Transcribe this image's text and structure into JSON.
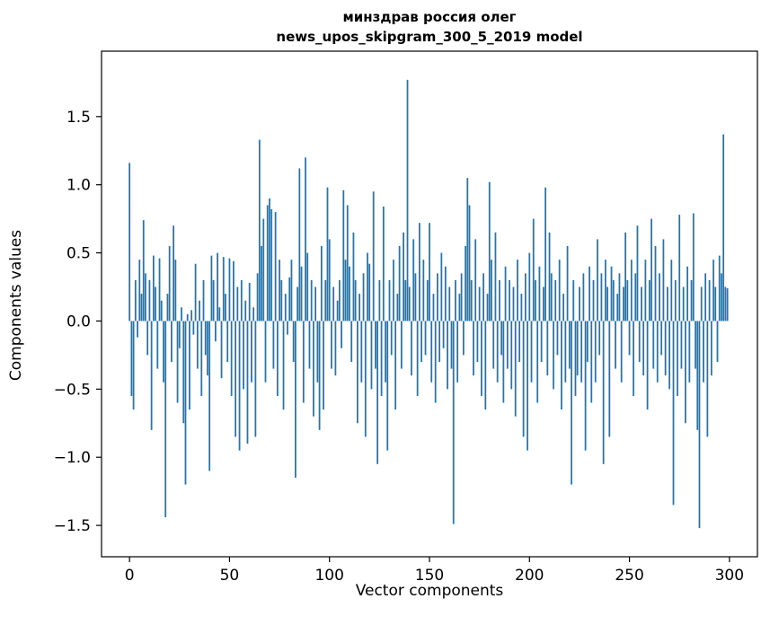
{
  "chart_data": {
    "type": "bar",
    "title": "минздрав россия олег",
    "subtitle": "news_upos_skipgram_300_5_2019 model",
    "xlabel": "Vector components",
    "ylabel": "Components values",
    "bar_color": "#1f77b4",
    "xlim": [
      -14,
      314
    ],
    "ylim": [
      -1.73,
      1.98
    ],
    "xticks": [
      0,
      50,
      100,
      150,
      200,
      250,
      300
    ],
    "yticks": [
      -1.5,
      -1.0,
      -0.5,
      0.0,
      0.5,
      1.0,
      1.5
    ],
    "grid": false,
    "legend": "none",
    "values": [
      1.16,
      -0.55,
      -0.65,
      0.3,
      -0.12,
      0.45,
      0.2,
      0.74,
      0.35,
      -0.25,
      0.3,
      -0.8,
      0.48,
      0.25,
      -0.35,
      0.46,
      0.15,
      -0.45,
      -1.44,
      0.2,
      0.55,
      -0.3,
      0.7,
      0.45,
      -0.6,
      -0.2,
      0.1,
      -0.75,
      -1.2,
      0.05,
      -0.65,
      0.08,
      -0.1,
      0.42,
      -0.35,
      0.15,
      -0.55,
      0.3,
      -0.25,
      -0.4,
      -1.1,
      0.48,
      0.3,
      -0.15,
      0.5,
      0.1,
      -0.42,
      0.47,
      0.2,
      -0.3,
      0.46,
      -0.55,
      0.44,
      -0.85,
      0.25,
      -0.95,
      0.3,
      -0.5,
      0.15,
      -0.9,
      0.28,
      -0.45,
      0.1,
      -0.85,
      0.35,
      1.33,
      0.55,
      0.75,
      -0.45,
      0.85,
      0.9,
      0.82,
      -0.35,
      0.8,
      -0.55,
      0.45,
      0.3,
      -0.65,
      0.2,
      -0.1,
      0.32,
      0.45,
      -0.3,
      -1.15,
      0.25,
      1.12,
      0.4,
      -0.6,
      1.2,
      0.5,
      -0.35,
      0.3,
      -0.7,
      0.25,
      -0.45,
      -0.8,
      0.55,
      -0.65,
      0.3,
      0.98,
      0.6,
      -0.35,
      0.25,
      -0.4,
      0.15,
      0.3,
      -0.2,
      0.96,
      0.45,
      0.85,
      0.4,
      -0.3,
      0.65,
      0.3,
      -0.75,
      0.2,
      -0.45,
      0.35,
      -0.85,
      0.5,
      0.42,
      -0.5,
      0.95,
      -0.35,
      -1.05,
      0.3,
      -0.55,
      0.84,
      -0.45,
      -0.95,
      0.3,
      -0.25,
      0.45,
      -0.65,
      0.2,
      0.55,
      -0.35,
      0.65,
      0.3,
      1.77,
      0.25,
      -0.4,
      0.6,
      0.35,
      -0.55,
      0.72,
      -0.3,
      0.45,
      -0.25,
      0.3,
      0.72,
      -0.45,
      0.2,
      -0.6,
      0.35,
      -0.3,
      0.5,
      -0.2,
      0.4,
      -0.5,
      0.25,
      -0.35,
      -1.49,
      0.3,
      -0.45,
      0.2,
      0.35,
      -0.25,
      0.55,
      1.05,
      0.85,
      0.3,
      -0.4,
      0.6,
      -0.3,
      0.25,
      -0.55,
      0.35,
      -0.65,
      0.2,
      1.02,
      0.45,
      -0.35,
      0.65,
      -0.45,
      0.3,
      -0.25,
      -0.6,
      0.4,
      -0.35,
      0.3,
      -0.5,
      0.25,
      -0.7,
      0.45,
      -0.3,
      0.2,
      -0.85,
      0.35,
      -0.95,
      0.5,
      -0.45,
      0.75,
      0.3,
      -0.6,
      0.4,
      -0.3,
      0.25,
      0.98,
      -0.4,
      0.65,
      0.35,
      -0.5,
      0.3,
      -0.25,
      0.45,
      -0.65,
      0.2,
      -0.45,
      0.55,
      -0.35,
      -1.2,
      0.3,
      -0.55,
      -0.4,
      0.25,
      -0.45,
      0.35,
      -0.95,
      -0.3,
      0.4,
      -0.6,
      0.3,
      -0.45,
      0.6,
      -0.25,
      0.35,
      -1.05,
      0.45,
      0.25,
      -0.85,
      0.4,
      0.3,
      -0.35,
      0.2,
      0.35,
      -0.45,
      0.25,
      0.65,
      0.3,
      -0.25,
      0.45,
      -0.55,
      0.35,
      0.7,
      -0.3,
      0.25,
      -0.4,
      0.45,
      -0.65,
      0.3,
      0.75,
      -0.35,
      0.55,
      -0.45,
      0.35,
      -0.25,
      0.6,
      -0.4,
      0.25,
      -0.5,
      0.45,
      -1.35,
      0.3,
      -0.55,
      0.78,
      -0.35,
      0.25,
      -0.75,
      0.4,
      -0.45,
      0.3,
      0.79,
      -0.35,
      -0.8,
      -1.52,
      0.25,
      -0.45,
      0.35,
      -0.85,
      0.3,
      -0.4,
      0.45,
      0.25,
      -0.3,
      0.48,
      0.35,
      1.37,
      0.25,
      0.24
    ]
  }
}
